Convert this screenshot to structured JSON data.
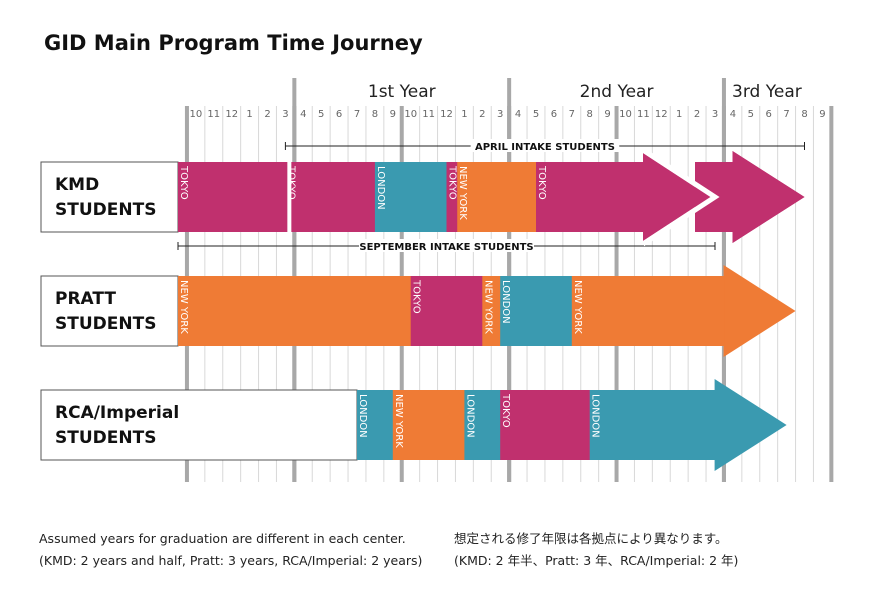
{
  "title": "GID Main Program Time Journey",
  "years": [
    "1st Year",
    "2nd Year",
    "3rd Year"
  ],
  "months": [
    "10",
    "11",
    "12",
    "1",
    "2",
    "3",
    "4",
    "5",
    "6",
    "7",
    "8",
    "9",
    "10",
    "11",
    "12",
    "1",
    "2",
    "3",
    "4",
    "5",
    "6",
    "7",
    "8",
    "9",
    "10",
    "11",
    "12",
    "1",
    "2",
    "3",
    "4",
    "5",
    "6",
    "7",
    "8",
    "9"
  ],
  "colors": {
    "tokyo": "#c0306e",
    "london": "#3a9ab0",
    "newyork": "#ef7b35"
  },
  "intakes": {
    "april": {
      "label": "APRIL INTAKE STUDENTS",
      "start": 6,
      "end": 35
    },
    "september": {
      "label": "SEPTEMBER INTAKE STUDENTS",
      "start": 0,
      "end": 30
    }
  },
  "rows": [
    {
      "label_lines": [
        "KMD",
        "STUDENTS"
      ],
      "segments": [
        {
          "city": "tokyo",
          "label": "TOKYO",
          "start": 0,
          "end": 6
        },
        {
          "city": "tokyo",
          "label": "TOKYO",
          "start": 6,
          "end": 11
        },
        {
          "city": "london",
          "label": "LONDON",
          "start": 11,
          "end": 15
        },
        {
          "city": "tokyo",
          "label": "TOKYO",
          "start": 15,
          "end": 15.6
        },
        {
          "city": "newyork",
          "label": "NEW YORK",
          "start": 15.6,
          "end": 20
        },
        {
          "city": "tokyo",
          "label": "TOKYO",
          "start": 20,
          "end": 30
        }
      ],
      "arrow_color": "tokyo",
      "arrows": [
        {
          "tip": 30
        },
        {
          "tip": 35
        }
      ]
    },
    {
      "label_lines": [
        "PRATT",
        "STUDENTS"
      ],
      "segments": [
        {
          "city": "newyork",
          "label": "NEW YORK",
          "start": 0,
          "end": 13
        },
        {
          "city": "tokyo",
          "label": "TOKYO",
          "start": 13,
          "end": 17
        },
        {
          "city": "newyork",
          "label": "NEW YORK",
          "start": 17,
          "end": 18
        },
        {
          "city": "london",
          "label": "LONDON",
          "start": 18,
          "end": 22
        },
        {
          "city": "newyork",
          "label": "NEW YORK",
          "start": 22,
          "end": 34.5
        }
      ],
      "arrow_color": "newyork",
      "arrows": [
        {
          "tip": 34.5
        }
      ]
    },
    {
      "label_lines": [
        "RCA/Imperial",
        "STUDENTS"
      ],
      "segments": [
        {
          "city": "london",
          "label": "LONDON",
          "start": 10,
          "end": 12
        },
        {
          "city": "newyork",
          "label": "NEW YORK",
          "start": 12,
          "end": 16
        },
        {
          "city": "london",
          "label": "LONDON",
          "start": 16,
          "end": 18
        },
        {
          "city": "tokyo",
          "label": "TOKYO",
          "start": 18,
          "end": 23
        },
        {
          "city": "london",
          "label": "LONDON",
          "start": 23,
          "end": 34
        }
      ],
      "arrow_color": "london",
      "arrows": [
        {
          "tip": 34
        }
      ]
    }
  ],
  "notes": {
    "en_line1": "Assumed years for graduation are different in each center.",
    "en_line2": "(KMD: 2 years and half, Pratt: 3 years, RCA/Imperial: 2 years)",
    "ja_line1": "想定される修了年限は各拠点により異なります。",
    "ja_line2": "(KMD: 2 年半、Pratt: 3 年、RCA/Imperial: 2 年)"
  }
}
